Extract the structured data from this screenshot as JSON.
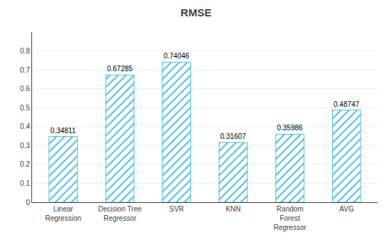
{
  "chart_data": {
    "type": "bar",
    "title": "RMSE",
    "categories": [
      "Linear\nRegression",
      "Decision Tree\nRegressor",
      "SVR",
      "KNN",
      "Random\nForest\nRegressor",
      "AVG"
    ],
    "values": [
      0.34811,
      0.67285,
      0.74046,
      0.31607,
      0.35986,
      0.48747
    ],
    "color": "#4BBEE3",
    "ylim": [
      0,
      0.9
    ],
    "yticks": [
      0,
      0.1,
      0.2,
      0.3,
      0.4,
      0.5,
      0.6,
      0.7,
      0.8
    ],
    "grid": true,
    "data_labels": true
  }
}
